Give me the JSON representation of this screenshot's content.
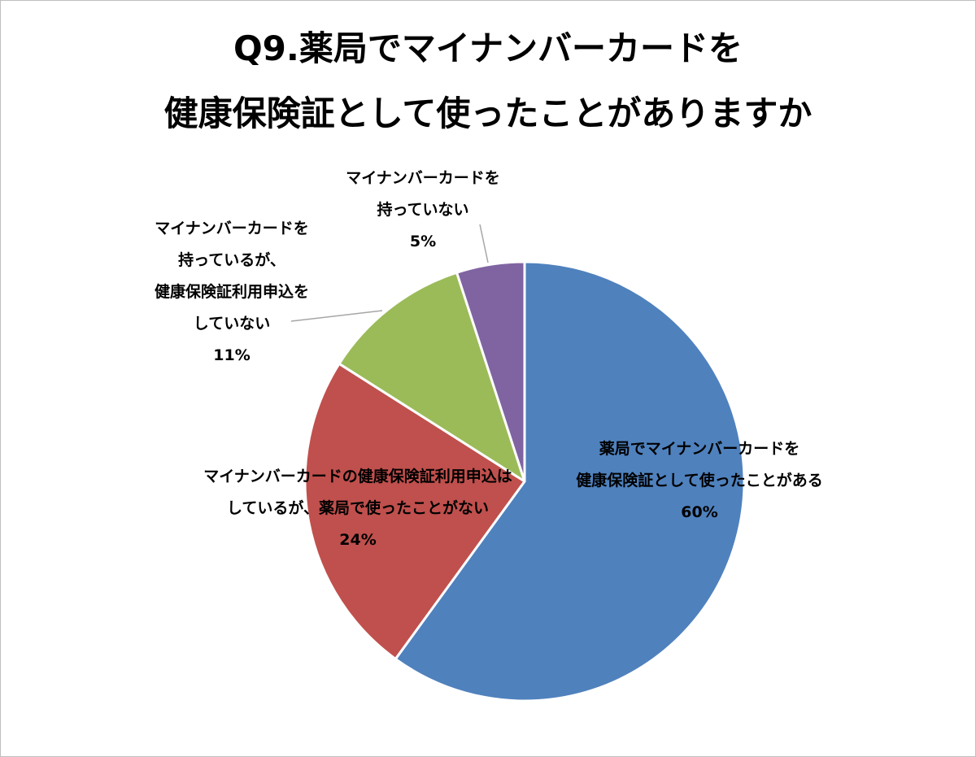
{
  "title": {
    "line1": "Q9.薬局でマイナンバーカードを",
    "line2": "健康保険証として使ったことがありますか"
  },
  "chart_data": {
    "type": "pie",
    "title": "Q9.薬局でマイナンバーカードを健康保険証として使ったことがありますか",
    "slices": [
      {
        "label_lines": [
          "薬局でマイナンバーカードを",
          "健康保険証として使ったことがある"
        ],
        "value": 60,
        "value_label": "60%",
        "color": "#4F81BD"
      },
      {
        "label_lines": [
          "マイナンバーカードの健康保険証利用申込は",
          "しているが、薬局で使ったことがない"
        ],
        "value": 24,
        "value_label": "24%",
        "color": "#C0504D"
      },
      {
        "label_lines": [
          "マイナンバーカードを",
          "持っているが、",
          "健康保険証利用申込を",
          "していない"
        ],
        "value": 11,
        "value_label": "11%",
        "color": "#9BBB59"
      },
      {
        "label_lines": [
          "マイナンバーカードを",
          "持っていない"
        ],
        "value": 5,
        "value_label": "5%",
        "color": "#8064A2"
      }
    ],
    "start_angle": "12 o'clock",
    "direction": "clockwise",
    "legend": "none"
  }
}
